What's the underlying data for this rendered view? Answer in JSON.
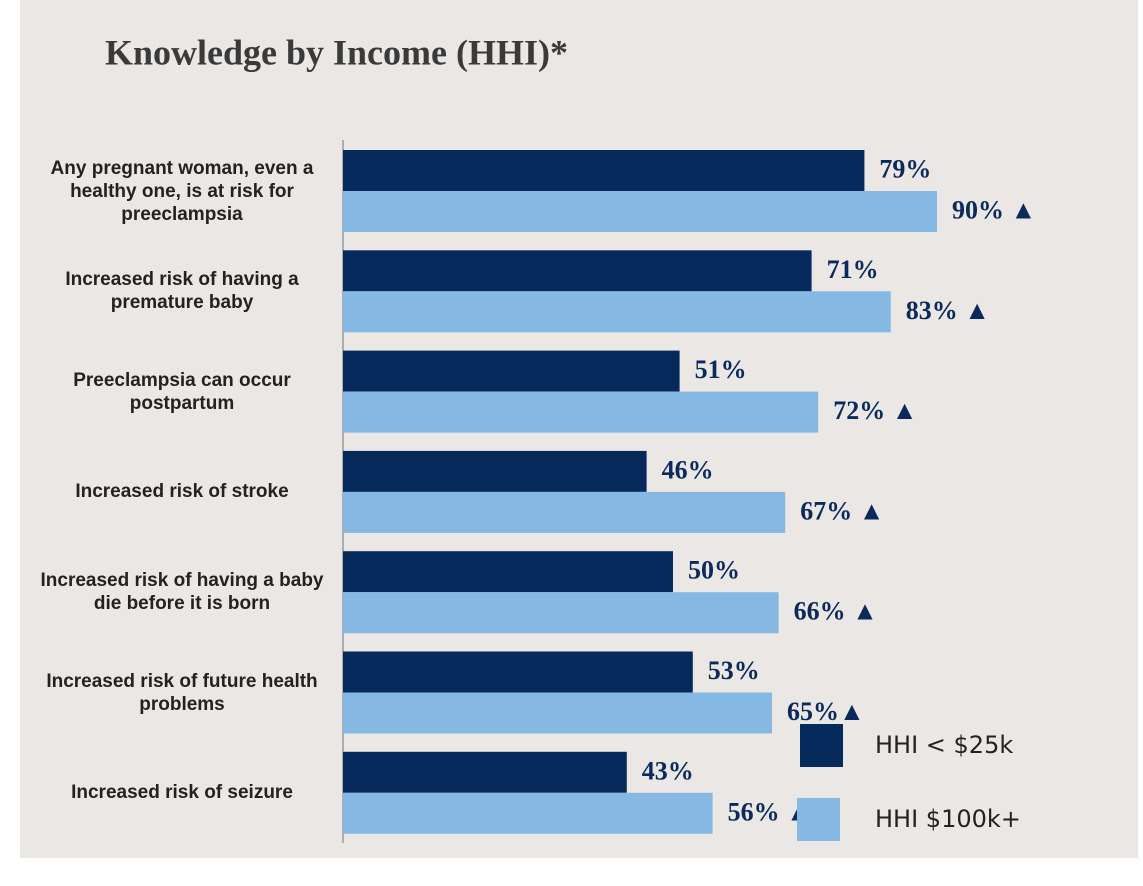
{
  "chart_data": {
    "type": "hbar",
    "title": "Knowledge by Income (HHI)*",
    "categories": [
      "Any pregnant woman, even a healthy one, is at risk for preeclampsia",
      "Increased risk of having a premature baby",
      "Preeclampsia can occur postpartum",
      "Increased risk of stroke",
      "Increased risk of having a baby die before it is born",
      "Increased risk of future health problems",
      "Increased risk of seizure"
    ],
    "series": [
      {
        "name": "HHI < $25k",
        "color": "#062a5c",
        "values": [
          79,
          71,
          51,
          46,
          50,
          53,
          43
        ],
        "value_labels": [
          "79%",
          "71%",
          "51%",
          "46%",
          "50%",
          "53%",
          "43%"
        ]
      },
      {
        "name": "HHI $100k+",
        "color": "#85b8e3",
        "values": [
          90,
          83,
          72,
          67,
          66,
          65,
          56
        ],
        "value_labels": [
          "90% ▲",
          "83% ▲",
          "72% ▲",
          "67% ▲",
          "66% ▲",
          "65%▲",
          "56% ▲"
        ]
      }
    ],
    "xlim": [
      0,
      100
    ],
    "legend": "lower right"
  }
}
